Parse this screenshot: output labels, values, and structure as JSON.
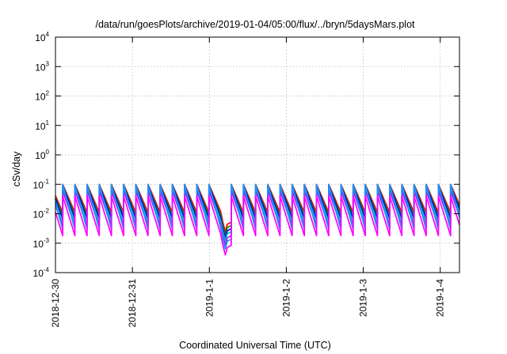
{
  "chart_data": {
    "type": "line",
    "title": "/data/run/goesPlots/archive/2019-01-04/05:00/flux/../bryn/5daysMars.plot",
    "xlabel": "Coordinated Universal Time (UTC)",
    "ylabel": "cSv/day",
    "yscale": "log",
    "ylim": [
      0.0001,
      10000
    ],
    "xlim": [
      "2018-12-30T00:00",
      "2019-01-04T06:00"
    ],
    "grid": true,
    "legend": "none",
    "x_ticks": [
      "2018-12-30",
      "2018-12-31",
      "2019-1-1",
      "2019-1-2",
      "2019-1-3",
      "2019-1-4"
    ],
    "y_ticks": [
      {
        "value": 0.0001,
        "mant": "10",
        "exp": "-4"
      },
      {
        "value": 0.001,
        "mant": "10",
        "exp": "-3"
      },
      {
        "value": 0.01,
        "mant": "10",
        "exp": "-2"
      },
      {
        "value": 0.1,
        "mant": "10",
        "exp": "-1"
      },
      {
        "value": 1,
        "mant": "10",
        "exp": "0"
      },
      {
        "value": 10,
        "mant": "10",
        "exp": "1"
      },
      {
        "value": 100,
        "mant": "10",
        "exp": "2"
      },
      {
        "value": 1000,
        "mant": "10",
        "exp": "3"
      },
      {
        "value": 10000,
        "mant": "10",
        "exp": "4"
      }
    ],
    "sawtooth_period_hours": 3.8,
    "gap": {
      "start": "2019-01-01T03:30",
      "end": "2019-01-01T06:50",
      "min_value": 0.0004
    },
    "series": [
      {
        "color": "#ff0000",
        "peak": 0.1,
        "trough": 0.011
      },
      {
        "color": "#008b00",
        "peak": 0.095,
        "trough": 0.0085
      },
      {
        "color": "#0000ff",
        "peak": 0.092,
        "trough": 0.0066
      },
      {
        "color": "#00c0c0",
        "peak": 0.075,
        "trough": 0.0052
      },
      {
        "color": "#a020f0",
        "peak": 0.06,
        "trough": 0.0038
      },
      {
        "color": "#1e90ff",
        "peak": 0.1,
        "trough": 0.0029
      },
      {
        "color": "#ff00ff",
        "peak": 0.04,
        "trough": 0.0018
      }
    ]
  }
}
